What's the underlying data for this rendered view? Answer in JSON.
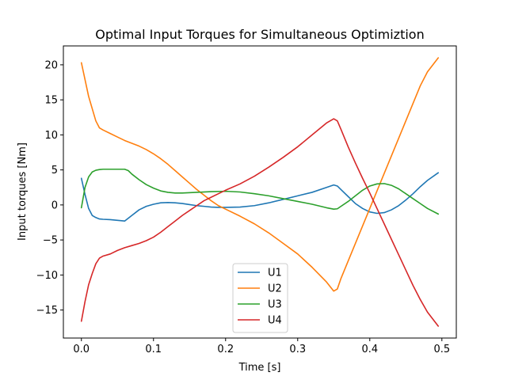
{
  "chart_data": {
    "type": "line",
    "title": "Optimal Input Torques for Simultaneous Optimiztion",
    "xlabel": "Time [s]",
    "ylabel": "Input torques [Nm]",
    "xlim": [
      -0.025,
      0.52
    ],
    "ylim": [
      -19.0,
      22.7
    ],
    "xticks": [
      0.0,
      0.1,
      0.2,
      0.3,
      0.4,
      0.5
    ],
    "xtick_labels": [
      "0.0",
      "0.1",
      "0.2",
      "0.3",
      "0.4",
      "0.5"
    ],
    "yticks": [
      -15,
      -10,
      -5,
      0,
      5,
      10,
      15,
      20
    ],
    "ytick_labels": [
      "−15",
      "−10",
      "−5",
      "0",
      "5",
      "10",
      "15",
      "20"
    ],
    "grid": false,
    "legend_position": "lower center",
    "series": [
      {
        "name": "U1",
        "color": "#1f77b4",
        "x": [
          0.0,
          0.005,
          0.01,
          0.015,
          0.02,
          0.025,
          0.03,
          0.04,
          0.05,
          0.06,
          0.07,
          0.08,
          0.09,
          0.1,
          0.11,
          0.12,
          0.13,
          0.14,
          0.15,
          0.16,
          0.17,
          0.18,
          0.19,
          0.2,
          0.22,
          0.24,
          0.26,
          0.28,
          0.3,
          0.32,
          0.34,
          0.35,
          0.355,
          0.36,
          0.37,
          0.38,
          0.39,
          0.4,
          0.41,
          0.42,
          0.43,
          0.44,
          0.45,
          0.46,
          0.47,
          0.48,
          0.495
        ],
        "y": [
          3.8,
          1.5,
          -0.5,
          -1.5,
          -1.8,
          -2.0,
          -2.05,
          -2.1,
          -2.2,
          -2.3,
          -1.5,
          -0.7,
          -0.2,
          0.1,
          0.3,
          0.35,
          0.3,
          0.2,
          0.05,
          -0.1,
          -0.2,
          -0.3,
          -0.35,
          -0.35,
          -0.3,
          -0.1,
          0.3,
          0.8,
          1.3,
          1.8,
          2.5,
          2.85,
          2.7,
          2.2,
          1.2,
          0.2,
          -0.5,
          -1.0,
          -1.2,
          -1.1,
          -0.7,
          -0.1,
          0.7,
          1.6,
          2.6,
          3.5,
          4.6
        ]
      },
      {
        "name": "U2",
        "color": "#ff7f0e",
        "x": [
          0.0,
          0.01,
          0.02,
          0.025,
          0.03,
          0.04,
          0.05,
          0.06,
          0.07,
          0.08,
          0.09,
          0.1,
          0.11,
          0.12,
          0.13,
          0.14,
          0.15,
          0.16,
          0.17,
          0.18,
          0.19,
          0.2,
          0.22,
          0.24,
          0.26,
          0.28,
          0.3,
          0.32,
          0.34,
          0.35,
          0.355,
          0.36,
          0.37,
          0.38,
          0.39,
          0.4,
          0.41,
          0.42,
          0.43,
          0.44,
          0.45,
          0.46,
          0.47,
          0.48,
          0.495
        ],
        "y": [
          20.3,
          15.5,
          12.0,
          11.0,
          10.7,
          10.2,
          9.7,
          9.2,
          8.8,
          8.4,
          7.9,
          7.3,
          6.6,
          5.8,
          4.9,
          4.0,
          3.1,
          2.2,
          1.4,
          0.6,
          -0.1,
          -0.6,
          -1.6,
          -2.7,
          -4.0,
          -5.5,
          -7.0,
          -8.9,
          -11.0,
          -12.3,
          -12.0,
          -10.5,
          -8.0,
          -5.5,
          -3.0,
          -0.5,
          2.0,
          4.5,
          7.0,
          9.5,
          12.0,
          14.5,
          17.0,
          19.0,
          21.0
        ]
      },
      {
        "name": "U3",
        "color": "#2ca02c",
        "x": [
          0.0,
          0.005,
          0.01,
          0.015,
          0.02,
          0.025,
          0.03,
          0.04,
          0.05,
          0.06,
          0.065,
          0.07,
          0.08,
          0.09,
          0.1,
          0.11,
          0.12,
          0.13,
          0.14,
          0.16,
          0.18,
          0.2,
          0.22,
          0.24,
          0.26,
          0.28,
          0.3,
          0.32,
          0.34,
          0.35,
          0.355,
          0.36,
          0.37,
          0.38,
          0.39,
          0.4,
          0.41,
          0.42,
          0.43,
          0.44,
          0.45,
          0.46,
          0.47,
          0.48,
          0.495
        ],
        "y": [
          -0.4,
          2.5,
          4.0,
          4.7,
          4.95,
          5.05,
          5.1,
          5.1,
          5.1,
          5.1,
          4.9,
          4.4,
          3.6,
          2.9,
          2.4,
          2.0,
          1.8,
          1.7,
          1.7,
          1.8,
          1.9,
          1.95,
          1.85,
          1.6,
          1.3,
          0.9,
          0.5,
          0.1,
          -0.4,
          -0.6,
          -0.55,
          -0.2,
          0.5,
          1.3,
          2.1,
          2.7,
          3.0,
          3.05,
          2.8,
          2.3,
          1.6,
          0.9,
          0.2,
          -0.5,
          -1.3
        ]
      },
      {
        "name": "U4",
        "color": "#d62728",
        "x": [
          0.0,
          0.005,
          0.01,
          0.015,
          0.02,
          0.025,
          0.03,
          0.04,
          0.05,
          0.06,
          0.07,
          0.08,
          0.09,
          0.1,
          0.11,
          0.12,
          0.13,
          0.14,
          0.15,
          0.16,
          0.17,
          0.18,
          0.19,
          0.2,
          0.22,
          0.24,
          0.26,
          0.28,
          0.3,
          0.32,
          0.34,
          0.35,
          0.355,
          0.36,
          0.37,
          0.38,
          0.39,
          0.4,
          0.41,
          0.42,
          0.43,
          0.44,
          0.45,
          0.46,
          0.47,
          0.48,
          0.495
        ],
        "y": [
          -16.6,
          -13.8,
          -11.4,
          -9.8,
          -8.4,
          -7.6,
          -7.3,
          -7.0,
          -6.5,
          -6.1,
          -5.8,
          -5.5,
          -5.1,
          -4.6,
          -3.9,
          -3.1,
          -2.3,
          -1.5,
          -0.8,
          -0.1,
          0.6,
          1.1,
          1.6,
          2.1,
          3.0,
          4.1,
          5.4,
          6.8,
          8.3,
          10.0,
          11.7,
          12.3,
          12.0,
          10.8,
          8.3,
          6.0,
          3.8,
          1.7,
          -0.5,
          -2.7,
          -4.9,
          -7.1,
          -9.3,
          -11.5,
          -13.5,
          -15.3,
          -17.3
        ]
      }
    ]
  }
}
